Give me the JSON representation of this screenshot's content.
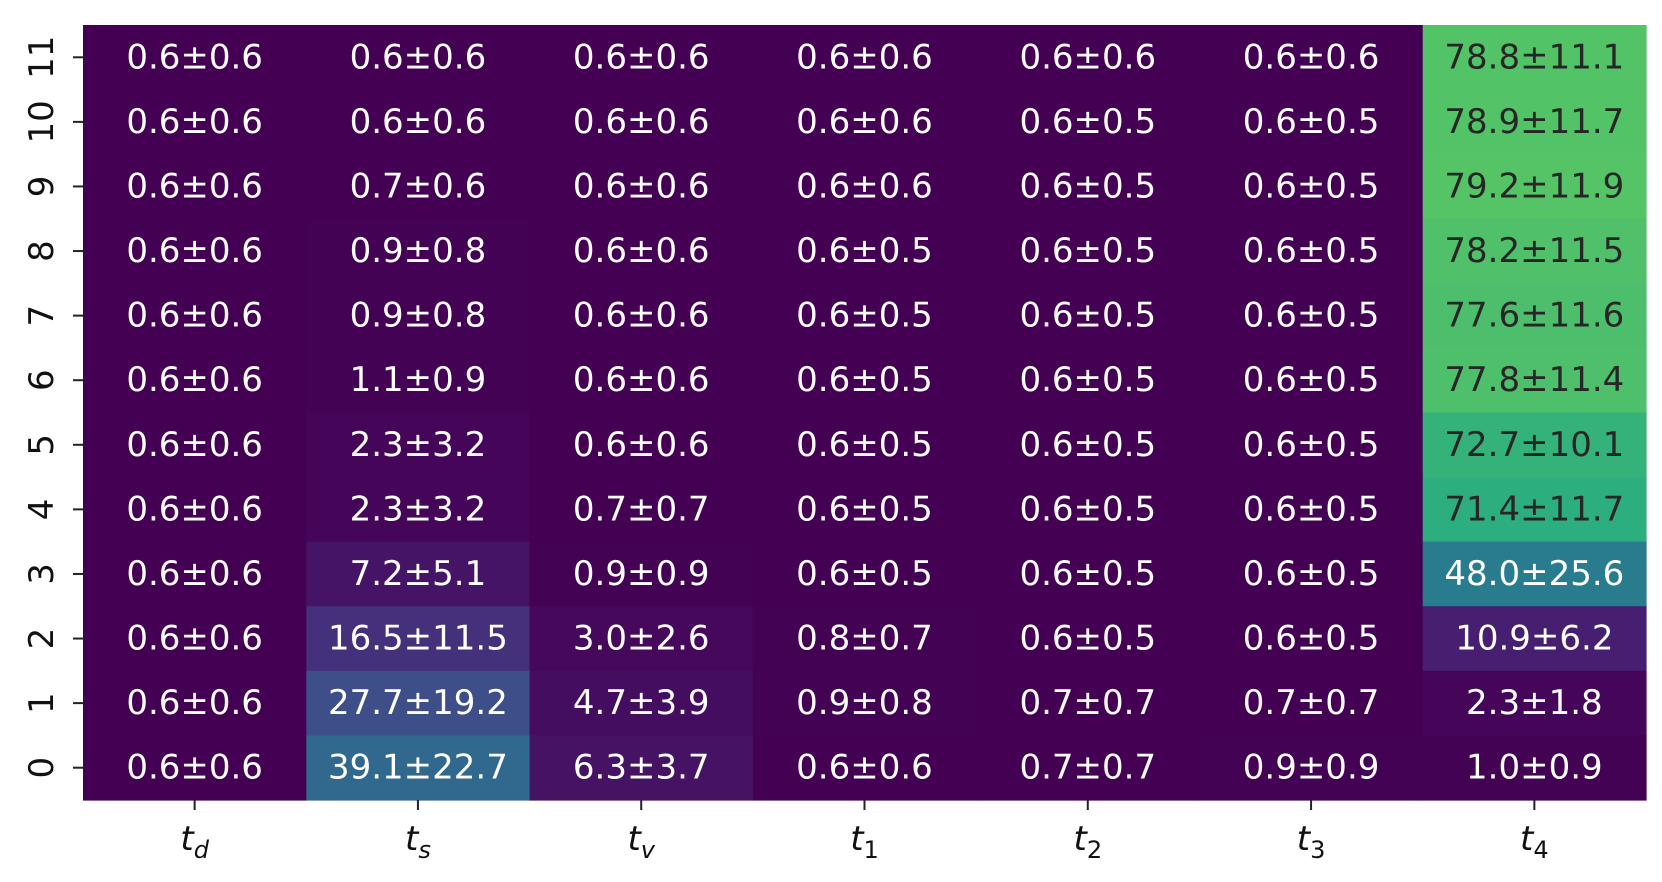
{
  "chart_data": {
    "type": "heatmap",
    "title": "",
    "xlabel": "",
    "ylabel": "",
    "colormap": "viridis",
    "x_categories": [
      {
        "base": "t",
        "sub": "d"
      },
      {
        "base": "t",
        "sub": "s"
      },
      {
        "base": "t",
        "sub": "v"
      },
      {
        "base": "t",
        "sub": "1"
      },
      {
        "base": "t",
        "sub": "2"
      },
      {
        "base": "t",
        "sub": "3"
      },
      {
        "base": "t",
        "sub": "4"
      }
    ],
    "y_categories": [
      "0",
      "1",
      "2",
      "3",
      "4",
      "5",
      "6",
      "7",
      "8",
      "9",
      "10",
      "11"
    ],
    "rows": [
      {
        "y": "11",
        "mean": [
          0.6,
          0.6,
          0.6,
          0.6,
          0.6,
          0.6,
          78.8
        ],
        "std": [
          0.6,
          0.6,
          0.6,
          0.6,
          0.6,
          0.6,
          11.1
        ],
        "labels": [
          "0.6±0.6",
          "0.6±0.6",
          "0.6±0.6",
          "0.6±0.6",
          "0.6±0.6",
          "0.6±0.6",
          "78.8±11.1"
        ]
      },
      {
        "y": "10",
        "mean": [
          0.6,
          0.6,
          0.6,
          0.6,
          0.6,
          0.6,
          78.9
        ],
        "std": [
          0.6,
          0.6,
          0.6,
          0.6,
          0.5,
          0.5,
          11.7
        ],
        "labels": [
          "0.6±0.6",
          "0.6±0.6",
          "0.6±0.6",
          "0.6±0.6",
          "0.6±0.5",
          "0.6±0.5",
          "78.9±11.7"
        ]
      },
      {
        "y": "9",
        "mean": [
          0.6,
          0.7,
          0.6,
          0.6,
          0.6,
          0.6,
          79.2
        ],
        "std": [
          0.6,
          0.6,
          0.6,
          0.6,
          0.5,
          0.5,
          11.9
        ],
        "labels": [
          "0.6±0.6",
          "0.7±0.6",
          "0.6±0.6",
          "0.6±0.6",
          "0.6±0.5",
          "0.6±0.5",
          "79.2±11.9"
        ]
      },
      {
        "y": "8",
        "mean": [
          0.6,
          0.9,
          0.6,
          0.6,
          0.6,
          0.6,
          78.2
        ],
        "std": [
          0.6,
          0.8,
          0.6,
          0.5,
          0.5,
          0.5,
          11.5
        ],
        "labels": [
          "0.6±0.6",
          "0.9±0.8",
          "0.6±0.6",
          "0.6±0.5",
          "0.6±0.5",
          "0.6±0.5",
          "78.2±11.5"
        ]
      },
      {
        "y": "7",
        "mean": [
          0.6,
          0.9,
          0.6,
          0.6,
          0.6,
          0.6,
          77.6
        ],
        "std": [
          0.6,
          0.8,
          0.6,
          0.5,
          0.5,
          0.5,
          11.6
        ],
        "labels": [
          "0.6±0.6",
          "0.9±0.8",
          "0.6±0.6",
          "0.6±0.5",
          "0.6±0.5",
          "0.6±0.5",
          "77.6±11.6"
        ]
      },
      {
        "y": "6",
        "mean": [
          0.6,
          1.1,
          0.6,
          0.6,
          0.6,
          0.6,
          77.8
        ],
        "std": [
          0.6,
          0.9,
          0.6,
          0.5,
          0.5,
          0.5,
          11.4
        ],
        "labels": [
          "0.6±0.6",
          "1.1±0.9",
          "0.6±0.6",
          "0.6±0.5",
          "0.6±0.5",
          "0.6±0.5",
          "77.8±11.4"
        ]
      },
      {
        "y": "5",
        "mean": [
          0.6,
          2.3,
          0.6,
          0.6,
          0.6,
          0.6,
          72.7
        ],
        "std": [
          0.6,
          3.2,
          0.6,
          0.5,
          0.5,
          0.5,
          10.1
        ],
        "labels": [
          "0.6±0.6",
          "2.3±3.2",
          "0.6±0.6",
          "0.6±0.5",
          "0.6±0.5",
          "0.6±0.5",
          "72.7±10.1"
        ]
      },
      {
        "y": "4",
        "mean": [
          0.6,
          2.3,
          0.7,
          0.6,
          0.6,
          0.6,
          71.4
        ],
        "std": [
          0.6,
          3.2,
          0.7,
          0.5,
          0.5,
          0.5,
          11.7
        ],
        "labels": [
          "0.6±0.6",
          "2.3±3.2",
          "0.7±0.7",
          "0.6±0.5",
          "0.6±0.5",
          "0.6±0.5",
          "71.4±11.7"
        ]
      },
      {
        "y": "3",
        "mean": [
          0.6,
          7.2,
          0.9,
          0.6,
          0.6,
          0.6,
          48.0
        ],
        "std": [
          0.6,
          5.1,
          0.9,
          0.5,
          0.5,
          0.5,
          25.6
        ],
        "labels": [
          "0.6±0.6",
          "7.2±5.1",
          "0.9±0.9",
          "0.6±0.5",
          "0.6±0.5",
          "0.6±0.5",
          "48.0±25.6"
        ]
      },
      {
        "y": "2",
        "mean": [
          0.6,
          16.5,
          3.0,
          0.8,
          0.6,
          0.6,
          10.9
        ],
        "std": [
          0.6,
          11.5,
          2.6,
          0.7,
          0.5,
          0.5,
          6.2
        ],
        "labels": [
          "0.6±0.6",
          "16.5±11.5",
          "3.0±2.6",
          "0.8±0.7",
          "0.6±0.5",
          "0.6±0.5",
          "10.9±6.2"
        ]
      },
      {
        "y": "1",
        "mean": [
          0.6,
          27.7,
          4.7,
          0.9,
          0.7,
          0.7,
          2.3
        ],
        "std": [
          0.6,
          19.2,
          3.9,
          0.8,
          0.7,
          0.7,
          1.8
        ],
        "labels": [
          "0.6±0.6",
          "27.7±19.2",
          "4.7±3.9",
          "0.9±0.8",
          "0.7±0.7",
          "0.7±0.7",
          "2.3±1.8"
        ]
      },
      {
        "y": "0",
        "mean": [
          0.6,
          39.1,
          6.3,
          0.6,
          0.7,
          0.9,
          1.0
        ],
        "std": [
          0.6,
          22.7,
          3.7,
          0.6,
          0.7,
          0.9,
          0.9
        ],
        "labels": [
          "0.6±0.6",
          "39.1±22.7",
          "6.3±3.7",
          "0.6±0.6",
          "0.7±0.7",
          "0.9±0.9",
          "1.0±0.9"
        ]
      }
    ],
    "color_range": [
      0.6,
      79.2
    ],
    "grid": false,
    "colorbar": false
  }
}
